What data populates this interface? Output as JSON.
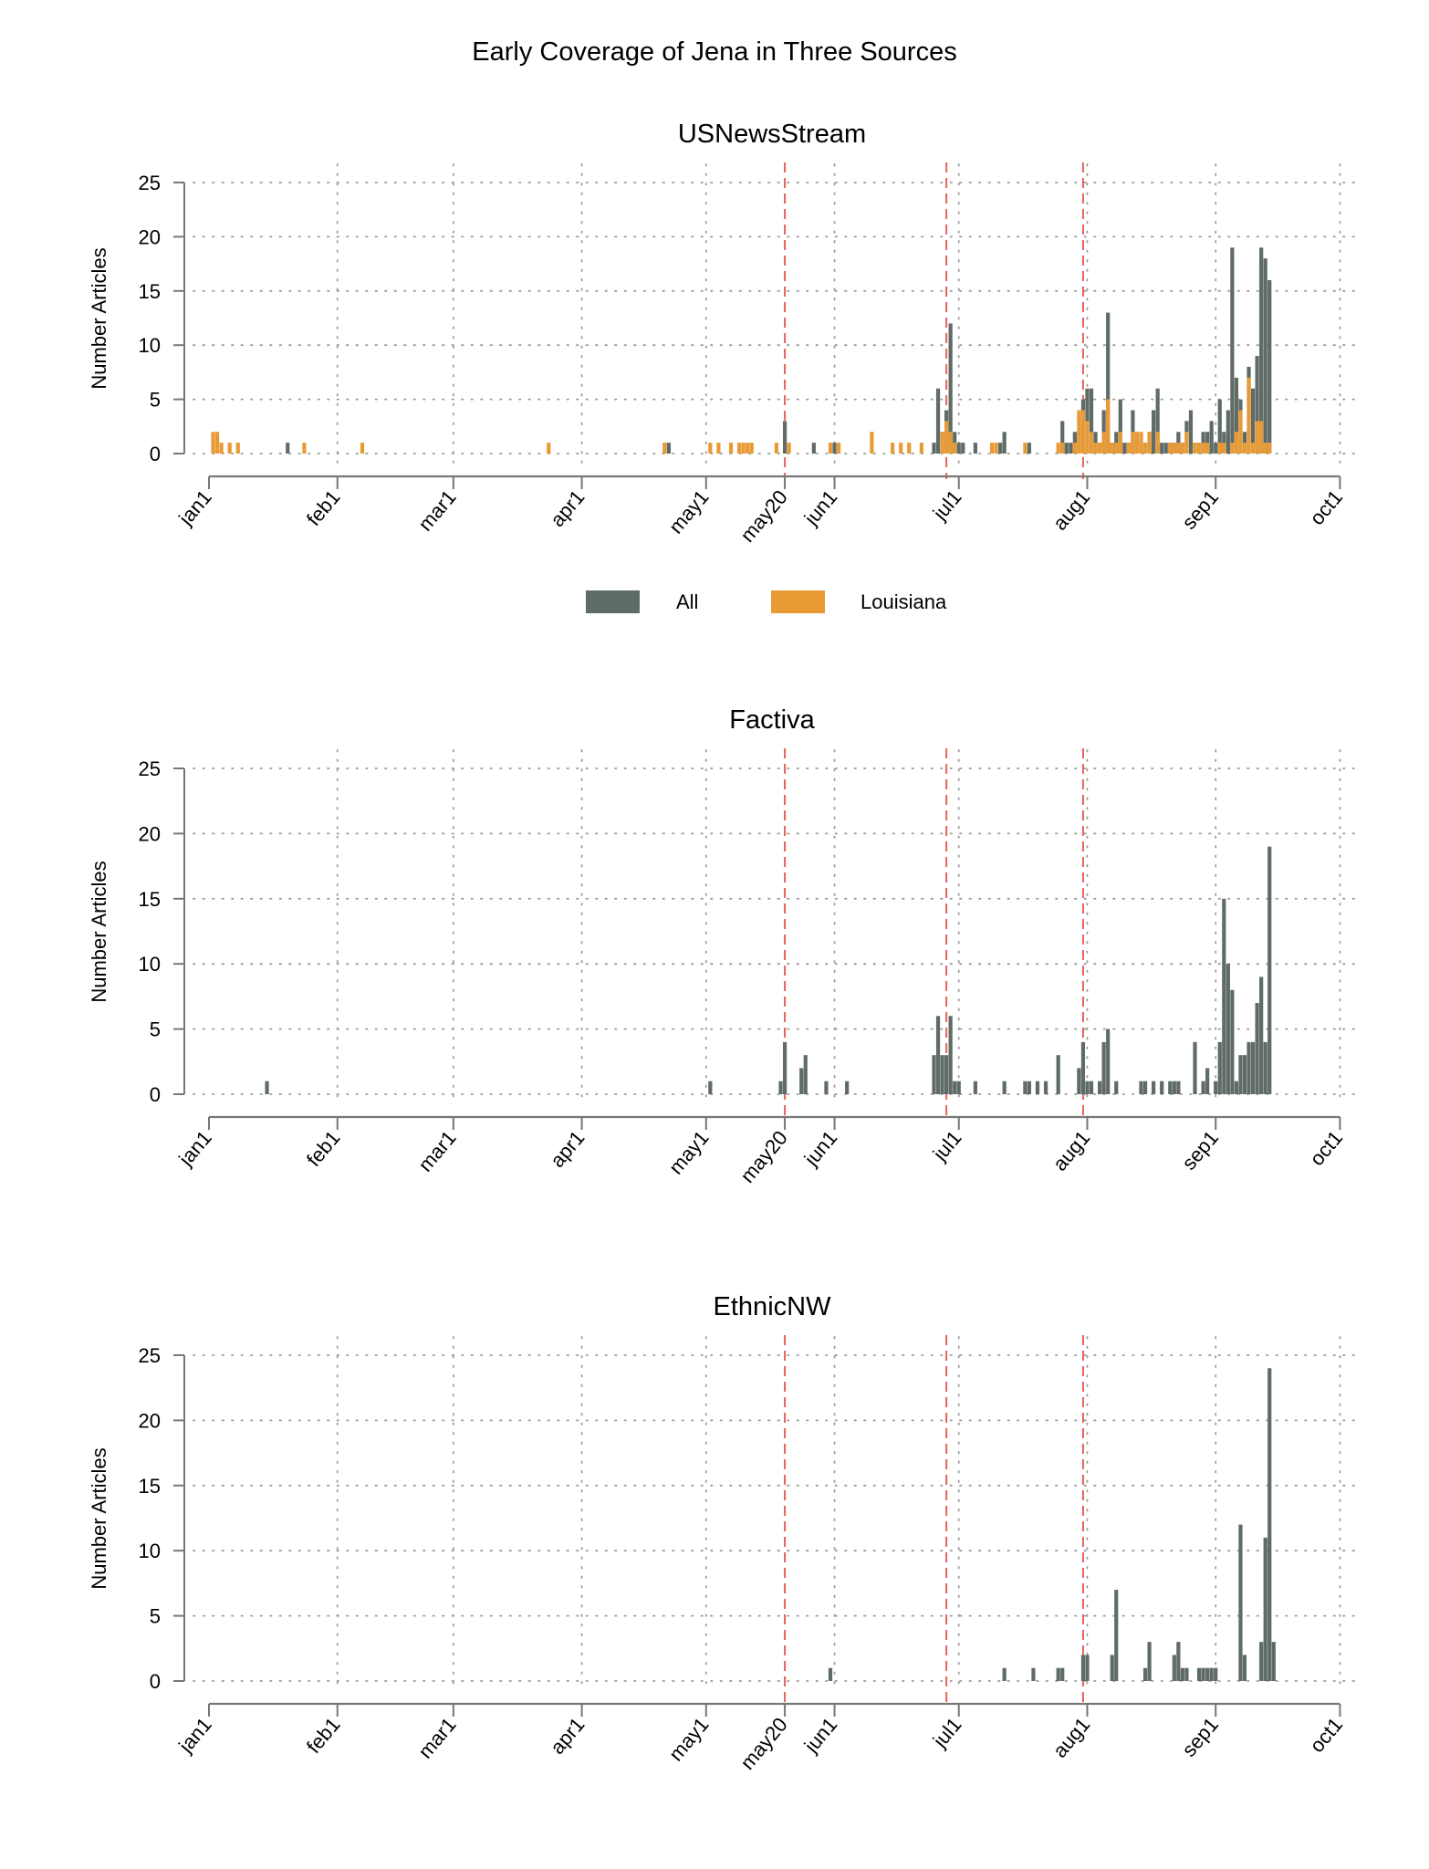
{
  "title": "Early Coverage of Jena in Three Sources",
  "colors": {
    "all": "#5f6b66",
    "louisiana": "#e89a35",
    "event_line": "#e8605a",
    "grid": "#999999",
    "axis": "#777777"
  },
  "legend": {
    "all_label": "All",
    "louisiana_label": "Louisiana"
  },
  "axis": {
    "ylabel": "Number Articles",
    "y_ticks": [
      "0",
      "5",
      "10",
      "15",
      "20",
      "25"
    ],
    "month_ticks": [
      {
        "label": "jan1",
        "day": 0
      },
      {
        "label": "feb1",
        "day": 31
      },
      {
        "label": "mar1",
        "day": 59
      },
      {
        "label": "apr1",
        "day": 90
      },
      {
        "label": "may1",
        "day": 120
      },
      {
        "label": "may20",
        "day": 139
      },
      {
        "label": "jun1",
        "day": 151
      },
      {
        "label": "jul1",
        "day": 181
      },
      {
        "label": "aug1",
        "day": 212
      },
      {
        "label": "sep1",
        "day": 243
      },
      {
        "label": "oct1",
        "day": 273
      }
    ],
    "event_days": [
      139,
      178,
      211
    ]
  },
  "chart_data": [
    {
      "type": "bar",
      "title": "USNewsStream",
      "ylabel": "Number Articles",
      "ylim": [
        0,
        25
      ],
      "xlim_days": [
        0,
        273
      ],
      "series": [
        {
          "name": "All",
          "points": [
            [
              19,
              1
            ],
            [
              110,
              1
            ],
            [
              111,
              1
            ],
            [
              139,
              3
            ],
            [
              146,
              1
            ],
            [
              151,
              1
            ],
            [
              175,
              1
            ],
            [
              176,
              6
            ],
            [
              177,
              2
            ],
            [
              178,
              4
            ],
            [
              179,
              12
            ],
            [
              180,
              2
            ],
            [
              181,
              1
            ],
            [
              182,
              1
            ],
            [
              185,
              1
            ],
            [
              191,
              1
            ],
            [
              192,
              2
            ],
            [
              198,
              1
            ],
            [
              206,
              3
            ],
            [
              207,
              1
            ],
            [
              208,
              1
            ],
            [
              209,
              2
            ],
            [
              210,
              2
            ],
            [
              211,
              5
            ],
            [
              212,
              6
            ],
            [
              213,
              6
            ],
            [
              214,
              2
            ],
            [
              215,
              1
            ],
            [
              216,
              4
            ],
            [
              217,
              13
            ],
            [
              218,
              1
            ],
            [
              219,
              2
            ],
            [
              220,
              5
            ],
            [
              221,
              1
            ],
            [
              222,
              1
            ],
            [
              223,
              4
            ],
            [
              224,
              2
            ],
            [
              225,
              1
            ],
            [
              226,
              1
            ],
            [
              227,
              2
            ],
            [
              228,
              4
            ],
            [
              229,
              6
            ],
            [
              230,
              1
            ],
            [
              231,
              1
            ],
            [
              232,
              1
            ],
            [
              233,
              1
            ],
            [
              234,
              2
            ],
            [
              235,
              1
            ],
            [
              236,
              3
            ],
            [
              237,
              4
            ],
            [
              238,
              1
            ],
            [
              239,
              1
            ],
            [
              240,
              2
            ],
            [
              241,
              2
            ],
            [
              242,
              3
            ],
            [
              243,
              1
            ],
            [
              244,
              5
            ],
            [
              245,
              2
            ],
            [
              246,
              4
            ],
            [
              247,
              19
            ],
            [
              248,
              7
            ],
            [
              249,
              5
            ],
            [
              250,
              2
            ],
            [
              251,
              8
            ],
            [
              252,
              6
            ],
            [
              253,
              9
            ],
            [
              254,
              19
            ],
            [
              255,
              18
            ],
            [
              256,
              16
            ]
          ]
        },
        {
          "name": "Louisiana",
          "points": [
            [
              1,
              2
            ],
            [
              2,
              2
            ],
            [
              3,
              1
            ],
            [
              5,
              1
            ],
            [
              7,
              1
            ],
            [
              23,
              1
            ],
            [
              37,
              1
            ],
            [
              82,
              1
            ],
            [
              110,
              1
            ],
            [
              121,
              1
            ],
            [
              123,
              1
            ],
            [
              126,
              1
            ],
            [
              128,
              1
            ],
            [
              129,
              1
            ],
            [
              130,
              1
            ],
            [
              131,
              1
            ],
            [
              137,
              1
            ],
            [
              140,
              1
            ],
            [
              150,
              1
            ],
            [
              152,
              1
            ],
            [
              160,
              2
            ],
            [
              165,
              1
            ],
            [
              167,
              1
            ],
            [
              169,
              1
            ],
            [
              172,
              1
            ],
            [
              177,
              2
            ],
            [
              178,
              3
            ],
            [
              179,
              2
            ],
            [
              180,
              1
            ],
            [
              189,
              1
            ],
            [
              190,
              1
            ],
            [
              197,
              1
            ],
            [
              205,
              1
            ],
            [
              206,
              1
            ],
            [
              209,
              1
            ],
            [
              210,
              4
            ],
            [
              211,
              4
            ],
            [
              212,
              3
            ],
            [
              213,
              2
            ],
            [
              214,
              1
            ],
            [
              215,
              1
            ],
            [
              216,
              2
            ],
            [
              217,
              5
            ],
            [
              218,
              1
            ],
            [
              219,
              1
            ],
            [
              220,
              2
            ],
            [
              222,
              1
            ],
            [
              223,
              2
            ],
            [
              224,
              2
            ],
            [
              225,
              2
            ],
            [
              226,
              1
            ],
            [
              227,
              2
            ],
            [
              229,
              2
            ],
            [
              232,
              1
            ],
            [
              233,
              1
            ],
            [
              234,
              1
            ],
            [
              235,
              1
            ],
            [
              236,
              2
            ],
            [
              238,
              1
            ],
            [
              239,
              1
            ],
            [
              240,
              1
            ],
            [
              241,
              1
            ],
            [
              244,
              1
            ],
            [
              245,
              1
            ],
            [
              247,
              1
            ],
            [
              248,
              2
            ],
            [
              249,
              4
            ],
            [
              250,
              1
            ],
            [
              251,
              7
            ],
            [
              252,
              1
            ],
            [
              253,
              3
            ],
            [
              254,
              3
            ],
            [
              255,
              1
            ],
            [
              256,
              1
            ]
          ]
        }
      ]
    },
    {
      "type": "bar",
      "title": "Factiva",
      "ylabel": "Number Articles",
      "ylim": [
        0,
        25
      ],
      "xlim_days": [
        0,
        273
      ],
      "series": [
        {
          "name": "All",
          "points": [
            [
              14,
              1
            ],
            [
              121,
              1
            ],
            [
              138,
              1
            ],
            [
              139,
              4
            ],
            [
              143,
              2
            ],
            [
              144,
              3
            ],
            [
              149,
              1
            ],
            [
              154,
              1
            ],
            [
              175,
              3
            ],
            [
              176,
              6
            ],
            [
              177,
              3
            ],
            [
              178,
              3
            ],
            [
              179,
              6
            ],
            [
              180,
              1
            ],
            [
              181,
              1
            ],
            [
              185,
              1
            ],
            [
              192,
              1
            ],
            [
              197,
              1
            ],
            [
              198,
              1
            ],
            [
              200,
              1
            ],
            [
              202,
              1
            ],
            [
              205,
              3
            ],
            [
              210,
              2
            ],
            [
              211,
              4
            ],
            [
              212,
              1
            ],
            [
              213,
              1
            ],
            [
              215,
              1
            ],
            [
              216,
              4
            ],
            [
              217,
              5
            ],
            [
              219,
              1
            ],
            [
              225,
              1
            ],
            [
              226,
              1
            ],
            [
              228,
              1
            ],
            [
              230,
              1
            ],
            [
              232,
              1
            ],
            [
              233,
              1
            ],
            [
              234,
              1
            ],
            [
              238,
              4
            ],
            [
              240,
              1
            ],
            [
              241,
              2
            ],
            [
              243,
              1
            ],
            [
              244,
              4
            ],
            [
              245,
              15
            ],
            [
              246,
              10
            ],
            [
              247,
              8
            ],
            [
              248,
              1
            ],
            [
              249,
              3
            ],
            [
              250,
              3
            ],
            [
              251,
              4
            ],
            [
              252,
              4
            ],
            [
              253,
              7
            ],
            [
              254,
              9
            ],
            [
              255,
              4
            ],
            [
              256,
              19
            ]
          ]
        },
        {
          "name": "Louisiana",
          "points": []
        }
      ]
    },
    {
      "type": "bar",
      "title": "EthnicNW",
      "ylabel": "Number Articles",
      "ylim": [
        0,
        25
      ],
      "xlim_days": [
        0,
        273
      ],
      "series": [
        {
          "name": "All",
          "points": [
            [
              150,
              1
            ],
            [
              192,
              1
            ],
            [
              199,
              1
            ],
            [
              205,
              1
            ],
            [
              206,
              1
            ],
            [
              211,
              2
            ],
            [
              212,
              2
            ],
            [
              218,
              2
            ],
            [
              219,
              7
            ],
            [
              226,
              1
            ],
            [
              227,
              3
            ],
            [
              233,
              2
            ],
            [
              234,
              3
            ],
            [
              235,
              1
            ],
            [
              236,
              1
            ],
            [
              239,
              1
            ],
            [
              240,
              1
            ],
            [
              241,
              1
            ],
            [
              242,
              1
            ],
            [
              243,
              1
            ],
            [
              249,
              12
            ],
            [
              250,
              2
            ],
            [
              254,
              3
            ],
            [
              255,
              11
            ],
            [
              256,
              24
            ],
            [
              257,
              3
            ]
          ]
        },
        {
          "name": "Louisiana",
          "points": []
        }
      ]
    }
  ]
}
